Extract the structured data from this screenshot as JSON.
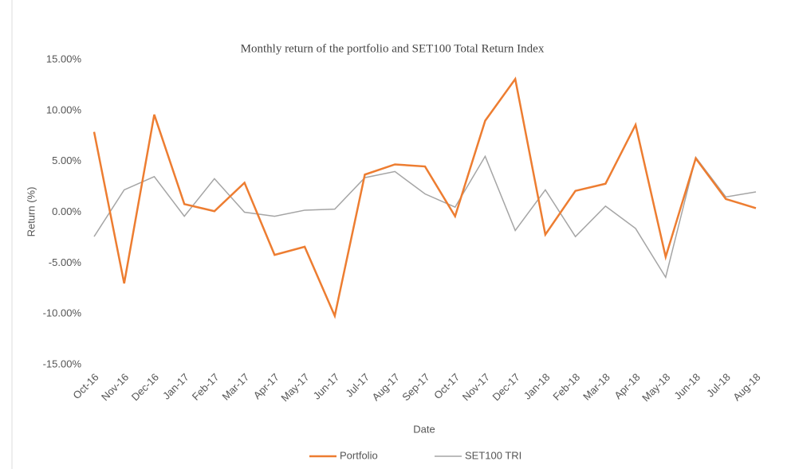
{
  "chart_data": {
    "type": "line",
    "title": "Monthly return of the portfolio and SET100 Total Return Index",
    "x_label": "Date",
    "y_label": "Return (%)",
    "categories": [
      "Oct-16",
      "Nov-16",
      "Dec-16",
      "Jan-17",
      "Feb-17",
      "Mar-17",
      "Apr-17",
      "May-17",
      "Jun-17",
      "Jul-17",
      "Aug-17",
      "Sep-17",
      "Oct-17",
      "Nov-17",
      "Dec-17",
      "Jan-18",
      "Feb-18",
      "Mar-18",
      "Apr-18",
      "May-18",
      "Jun-18",
      "Jul-18",
      "Aug-18"
    ],
    "series": [
      {
        "name": "Portfolio",
        "color": "#ed7d31",
        "values": [
          7.9,
          -7.0,
          9.6,
          0.8,
          0.1,
          2.9,
          -4.2,
          -3.4,
          -10.2,
          3.7,
          4.7,
          4.5,
          -0.4,
          9.0,
          13.1,
          -2.2,
          2.1,
          2.8,
          8.6,
          -4.4,
          5.3,
          1.3,
          0.4
        ]
      },
      {
        "name": "SET100 TRI",
        "color": "#a5a5a5",
        "values": [
          -2.4,
          2.2,
          3.5,
          -0.4,
          3.3,
          0.0,
          -0.4,
          0.2,
          0.3,
          3.4,
          4.0,
          1.8,
          0.5,
          5.5,
          -1.8,
          2.2,
          -2.4,
          0.6,
          -1.6,
          -6.4,
          5.4,
          1.5,
          2.0
        ]
      }
    ],
    "ylim": [
      -15,
      15
    ],
    "yticks": [
      {
        "value": -15,
        "label": "-15.00%"
      },
      {
        "value": -10,
        "label": "-10.00%"
      },
      {
        "value": -5,
        "label": "-5.00%"
      },
      {
        "value": 0,
        "label": "0.00%"
      },
      {
        "value": 5,
        "label": "5.00%"
      },
      {
        "value": 10,
        "label": "10.00%"
      },
      {
        "value": 15,
        "label": "15.00%"
      }
    ],
    "grid": false,
    "legend": "bottom"
  }
}
